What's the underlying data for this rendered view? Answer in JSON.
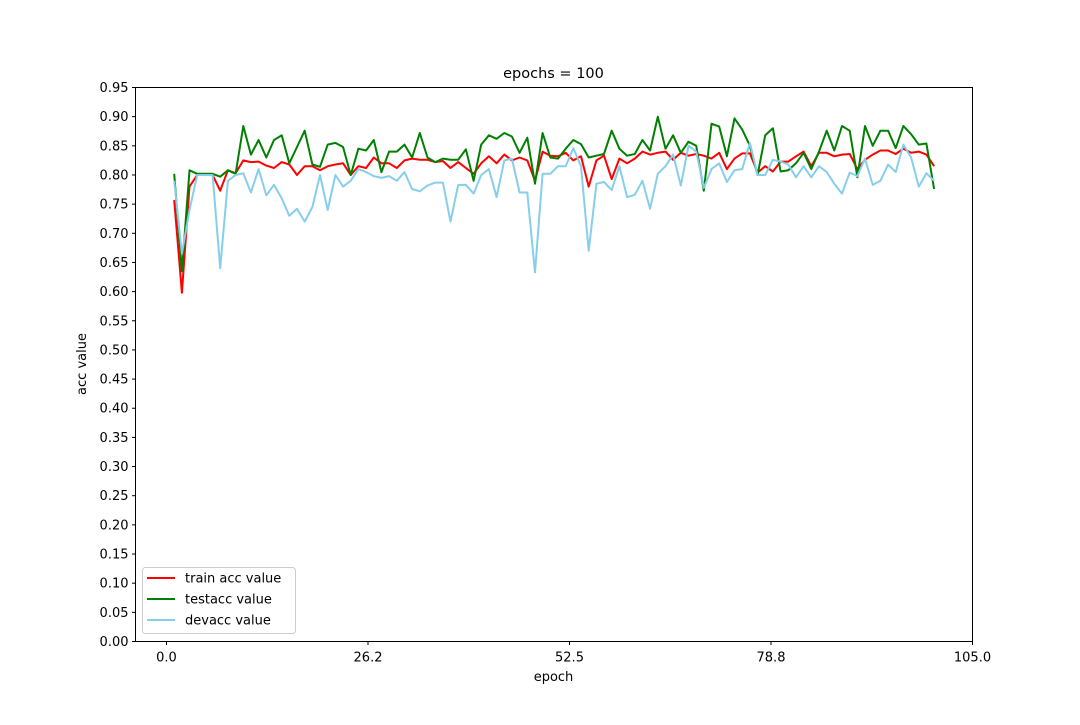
{
  "chart_data": {
    "type": "line",
    "title": "epochs = 100",
    "xlabel": "epoch",
    "ylabel": "acc value",
    "xlim": [
      -4.04,
      105
    ],
    "ylim": [
      0,
      0.95
    ],
    "xticks": [
      0,
      26.25,
      52.5,
      78.75,
      105
    ],
    "xtick_labels": [
      "0.0",
      "26.2",
      "52.5",
      "78.8",
      "105.0"
    ],
    "yticks": [
      0,
      0.05,
      0.1,
      0.15,
      0.2,
      0.25,
      0.3,
      0.35,
      0.4,
      0.45,
      0.5,
      0.55,
      0.6,
      0.65,
      0.7,
      0.75,
      0.8,
      0.85,
      0.9,
      0.95
    ],
    "ytick_labels": [
      "0.00",
      "0.05",
      "0.10",
      "0.15",
      "0.20",
      "0.25",
      "0.30",
      "0.35",
      "0.40",
      "0.45",
      "0.50",
      "0.55",
      "0.60",
      "0.65",
      "0.70",
      "0.75",
      "0.80",
      "0.85",
      "0.90",
      "0.95"
    ],
    "grid": false,
    "legend_placement": "lower-left",
    "x_start": 1,
    "series": [
      {
        "name": "train acc value",
        "color": "#ff0000",
        "values": [
          0.757,
          0.598,
          0.78,
          0.8,
          0.8,
          0.8,
          0.773,
          0.808,
          0.803,
          0.825,
          0.822,
          0.823,
          0.816,
          0.812,
          0.822,
          0.818,
          0.8,
          0.815,
          0.815,
          0.808,
          0.815,
          0.818,
          0.82,
          0.8,
          0.815,
          0.812,
          0.83,
          0.82,
          0.82,
          0.812,
          0.825,
          0.828,
          0.826,
          0.826,
          0.822,
          0.824,
          0.812,
          0.822,
          0.812,
          0.802,
          0.82,
          0.832,
          0.82,
          0.835,
          0.825,
          0.83,
          0.825,
          0.79,
          0.84,
          0.833,
          0.832,
          0.838,
          0.825,
          0.832,
          0.78,
          0.825,
          0.833,
          0.793,
          0.828,
          0.82,
          0.828,
          0.84,
          0.835,
          0.838,
          0.84,
          0.826,
          0.838,
          0.833,
          0.836,
          0.833,
          0.828,
          0.838,
          0.81,
          0.828,
          0.837,
          0.837,
          0.804,
          0.815,
          0.806,
          0.823,
          0.823,
          0.832,
          0.84,
          0.815,
          0.838,
          0.838,
          0.832,
          0.835,
          0.836,
          0.81,
          0.826,
          0.835,
          0.842,
          0.842,
          0.836,
          0.845,
          0.838,
          0.84,
          0.835,
          0.815
        ]
      },
      {
        "name": "testacc value",
        "color": "#008000",
        "values": [
          0.802,
          0.635,
          0.808,
          0.802,
          0.802,
          0.802,
          0.797,
          0.808,
          0.802,
          0.884,
          0.835,
          0.86,
          0.83,
          0.86,
          0.868,
          0.82,
          0.848,
          0.876,
          0.818,
          0.814,
          0.852,
          0.855,
          0.848,
          0.8,
          0.845,
          0.842,
          0.86,
          0.805,
          0.84,
          0.84,
          0.852,
          0.83,
          0.872,
          0.83,
          0.822,
          0.828,
          0.826,
          0.826,
          0.844,
          0.79,
          0.852,
          0.868,
          0.862,
          0.872,
          0.866,
          0.838,
          0.864,
          0.785,
          0.872,
          0.83,
          0.828,
          0.845,
          0.86,
          0.853,
          0.83,
          0.833,
          0.836,
          0.876,
          0.845,
          0.833,
          0.836,
          0.86,
          0.842,
          0.9,
          0.845,
          0.868,
          0.838,
          0.857,
          0.85,
          0.773,
          0.888,
          0.883,
          0.832,
          0.897,
          0.878,
          0.85,
          0.8,
          0.868,
          0.88,
          0.806,
          0.808,
          0.82,
          0.838,
          0.81,
          0.84,
          0.876,
          0.842,
          0.884,
          0.876,
          0.796,
          0.884,
          0.85,
          0.876,
          0.876,
          0.846,
          0.884,
          0.87,
          0.852,
          0.854,
          0.776
        ]
      },
      {
        "name": "devacc value",
        "color": "#87ceeb",
        "values": [
          0.79,
          0.665,
          0.74,
          0.8,
          0.8,
          0.8,
          0.64,
          0.79,
          0.8,
          0.803,
          0.77,
          0.81,
          0.765,
          0.783,
          0.76,
          0.73,
          0.742,
          0.72,
          0.745,
          0.8,
          0.74,
          0.8,
          0.78,
          0.79,
          0.81,
          0.805,
          0.798,
          0.795,
          0.798,
          0.79,
          0.805,
          0.776,
          0.772,
          0.782,
          0.787,
          0.787,
          0.72,
          0.783,
          0.783,
          0.768,
          0.8,
          0.81,
          0.762,
          0.825,
          0.828,
          0.77,
          0.77,
          0.633,
          0.802,
          0.802,
          0.815,
          0.815,
          0.846,
          0.815,
          0.67,
          0.785,
          0.788,
          0.774,
          0.815,
          0.762,
          0.766,
          0.79,
          0.742,
          0.802,
          0.815,
          0.835,
          0.782,
          0.85,
          0.84,
          0.778,
          0.81,
          0.82,
          0.788,
          0.808,
          0.81,
          0.855,
          0.8,
          0.8,
          0.826,
          0.823,
          0.818,
          0.796,
          0.815,
          0.796,
          0.815,
          0.805,
          0.785,
          0.768,
          0.804,
          0.798,
          0.828,
          0.783,
          0.79,
          0.818,
          0.805,
          0.852,
          0.83,
          0.78,
          0.803,
          0.79
        ]
      }
    ]
  }
}
